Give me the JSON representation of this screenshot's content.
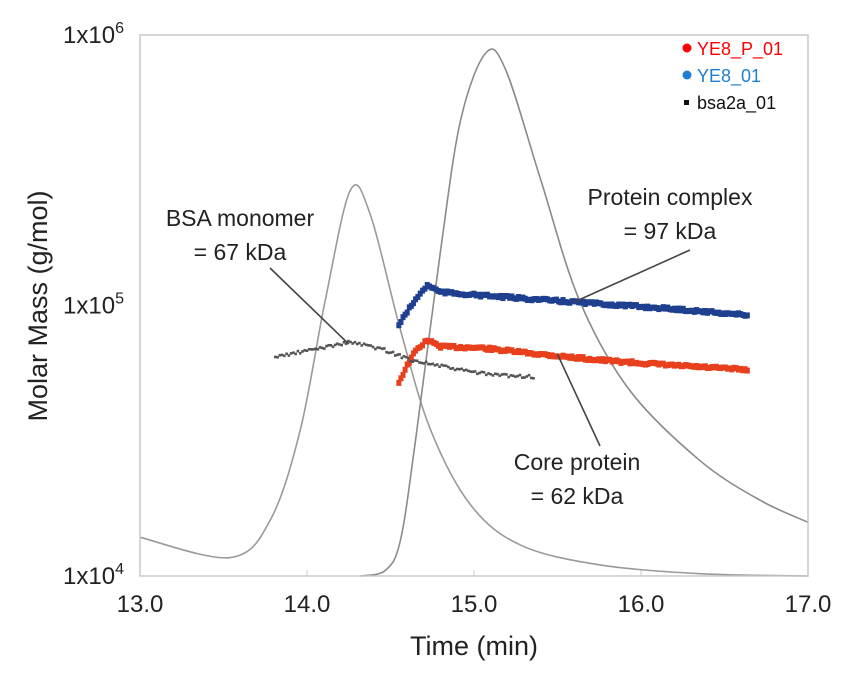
{
  "chart_data": {
    "type": "scatter",
    "xlabel": "Time (min)",
    "ylabel": "Molar Mass (g/mol)",
    "xlim": [
      13.0,
      17.0
    ],
    "ylim": [
      10000,
      1000000
    ],
    "yscale": "log",
    "grid": false,
    "legend_placement": "top-right",
    "x_ticks": [
      "13.0",
      "14.0",
      "15.0",
      "16.0",
      "17.0"
    ],
    "x_tick_values": [
      13,
      14,
      15,
      16,
      17
    ],
    "y_ticks": [
      {
        "value": 1000000,
        "base": "1x10",
        "exp": "6"
      },
      {
        "value": 100000,
        "base": "1x10",
        "exp": "5"
      },
      {
        "value": 10000,
        "base": "1x10",
        "exp": "4"
      }
    ],
    "series": [
      {
        "name": "YE8_P_01",
        "color": "#e8401c",
        "legend_color": "#ff0000",
        "marker": "circle",
        "points": [
          [
            14.55,
            52000
          ],
          [
            14.6,
            60000
          ],
          [
            14.65,
            68000
          ],
          [
            14.72,
            74500
          ],
          [
            14.8,
            70500
          ],
          [
            15.04,
            69700
          ],
          [
            15.4,
            66000
          ],
          [
            15.8,
            62500
          ],
          [
            16.2,
            60000
          ],
          [
            16.65,
            57800
          ]
        ]
      },
      {
        "name": "YE8_01",
        "color": "#1f3f8f",
        "legend_color": "#1f7fd0",
        "marker": "circle",
        "points": [
          [
            14.55,
            84700
          ],
          [
            14.6,
            95000
          ],
          [
            14.65,
            105000
          ],
          [
            14.72,
            119000
          ],
          [
            14.8,
            112000
          ],
          [
            15.04,
            109000
          ],
          [
            15.4,
            105000
          ],
          [
            15.8,
            101000
          ],
          [
            16.2,
            97000
          ],
          [
            16.65,
            92000
          ]
        ]
      },
      {
        "name": "bsa2a_01",
        "color": "#555555",
        "legend_color": "#111111",
        "marker": "square",
        "points": [
          [
            13.81,
            64500
          ],
          [
            14.0,
            68000
          ],
          [
            14.26,
            73300
          ],
          [
            14.45,
            69000
          ],
          [
            14.62,
            63000
          ],
          [
            14.9,
            58000
          ],
          [
            15.1,
            55500
          ],
          [
            15.37,
            54400
          ]
        ]
      }
    ],
    "traces": [
      {
        "color": "#9a9a9a",
        "points": [
          [
            13.0,
            13900
          ],
          [
            13.54,
            11700
          ],
          [
            13.78,
            16100
          ],
          [
            13.96,
            34700
          ],
          [
            14.11,
            105000
          ],
          [
            14.26,
            267000
          ],
          [
            14.38,
            216000
          ],
          [
            14.56,
            81000
          ],
          [
            14.74,
            34700
          ],
          [
            14.98,
            18300
          ],
          [
            15.28,
            13000
          ],
          [
            15.75,
            11000
          ],
          [
            16.35,
            10200
          ],
          [
            17.0,
            10000
          ]
        ]
      },
      {
        "color": "#8a8a8a",
        "points": [
          [
            14.32,
            10000
          ],
          [
            14.47,
            10500
          ],
          [
            14.56,
            13600
          ],
          [
            14.65,
            31800
          ],
          [
            14.8,
            160000
          ],
          [
            14.92,
            485000
          ],
          [
            15.07,
            857000
          ],
          [
            15.19,
            743000
          ],
          [
            15.4,
            291000
          ],
          [
            15.63,
            105000
          ],
          [
            15.93,
            48800
          ],
          [
            16.35,
            26800
          ],
          [
            16.71,
            19100
          ],
          [
            17.0,
            15800
          ]
        ]
      }
    ],
    "annotations": [
      {
        "lines": [
          "BSA monomer",
          "= 67 kDa"
        ],
        "points_to": [
          14.25,
          72000
        ]
      },
      {
        "lines": [
          "Protein complex",
          "= 97 kDa"
        ],
        "points_to": [
          15.6,
          103000
        ]
      },
      {
        "lines": [
          "Core protein",
          "= 62 kDa"
        ],
        "points_to": [
          15.5,
          66000
        ]
      }
    ]
  }
}
